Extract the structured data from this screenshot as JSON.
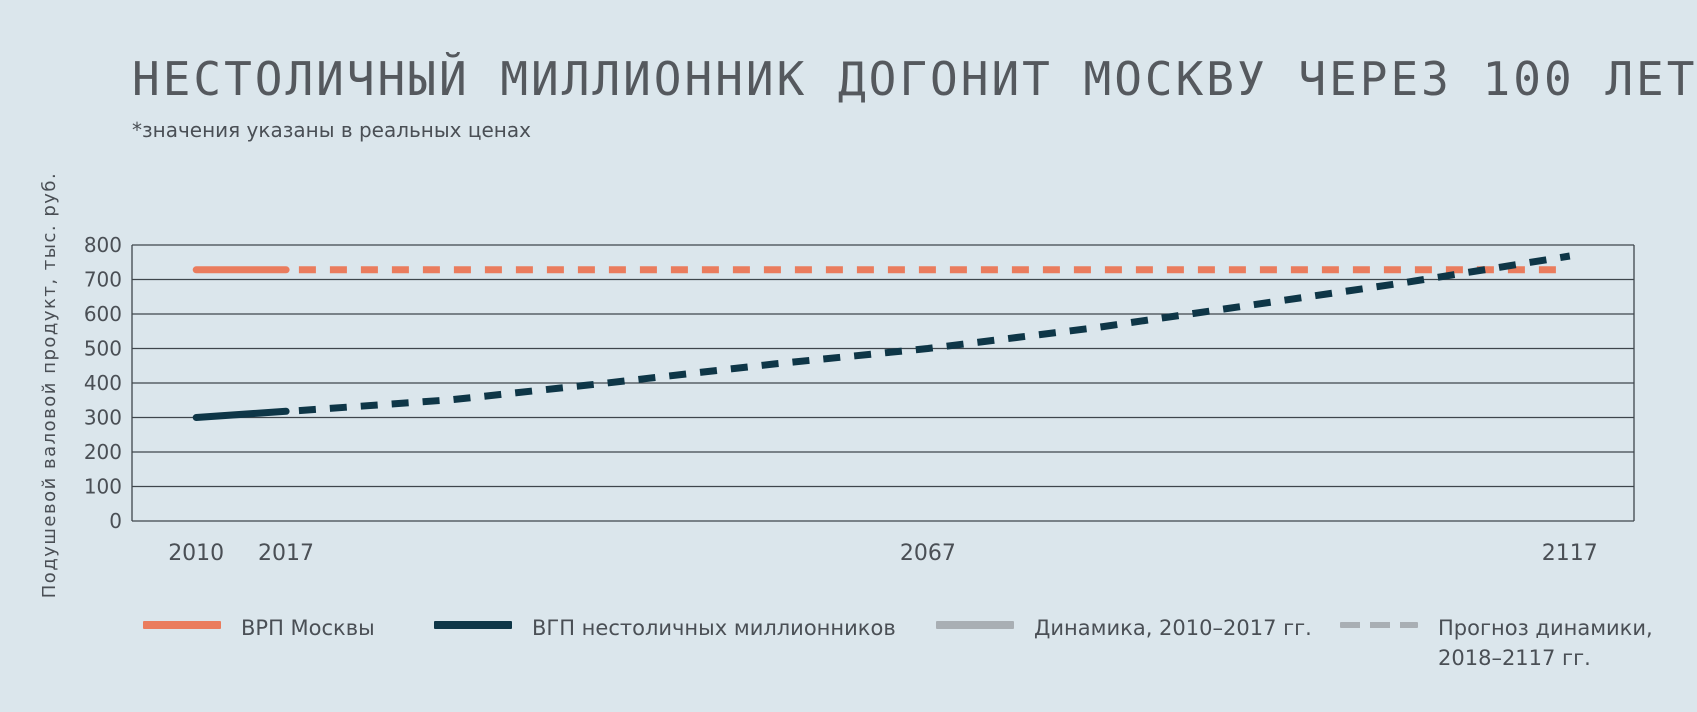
{
  "header": {
    "title": "НЕСТОЛИЧНЫЙ МИЛЛИОННИК ДОГОНИТ МОСКВУ ЧЕРЕЗ 100 ЛЕТ",
    "subtitle": "*значения указаны в реальных ценах"
  },
  "chart_data": {
    "type": "line",
    "title": "НЕСТОЛИЧНЫЙ МИЛЛИОННИК ДОГОНИТ МОСКВУ ЧЕРЕЗ 100 ЛЕТ",
    "subtitle": "*значения указаны в реальных ценах",
    "ylabel": "Подушевой валовой продукт, тыс. руб.",
    "xlabel": "",
    "ylim": [
      0,
      800
    ],
    "yticks": [
      0,
      100,
      200,
      300,
      400,
      500,
      600,
      700,
      800
    ],
    "xticks": [
      "2010",
      "2017",
      "2067",
      "2117"
    ],
    "xlim": [
      2005,
      2122
    ],
    "grid": true,
    "series": [
      {
        "name": "ВРП Москвы",
        "color": "#ea7c5d",
        "actual": [
          [
            2010,
            728
          ],
          [
            2017,
            728
          ]
        ],
        "forecast": [
          [
            2018,
            728
          ],
          [
            2117,
            728
          ]
        ]
      },
      {
        "name": "ВГП нестоличных миллионников",
        "color": "#0e3647",
        "actual": [
          [
            2010,
            300
          ],
          [
            2017,
            318
          ]
        ],
        "forecast": [
          [
            2018,
            320
          ],
          [
            2030,
            352
          ],
          [
            2042,
            400
          ],
          [
            2055,
            455
          ],
          [
            2067,
            500
          ],
          [
            2080,
            560
          ],
          [
            2092,
            625
          ],
          [
            2104,
            690
          ],
          [
            2117,
            768
          ]
        ]
      }
    ]
  },
  "legend": [
    {
      "label": "ВРП Москвы",
      "color": "#ea7c5d",
      "style": "solid"
    },
    {
      "label": "ВГП нестоличных миллионников",
      "color": "#0e3647",
      "style": "solid"
    },
    {
      "label": "Динамика, 2010–2017 гг.",
      "color": "#a9afb4",
      "style": "solid"
    },
    {
      "label": "Прогноз динамики,",
      "label2": "2018–2117 гг.",
      "color": "#a9afb4",
      "style": "dashed"
    }
  ]
}
